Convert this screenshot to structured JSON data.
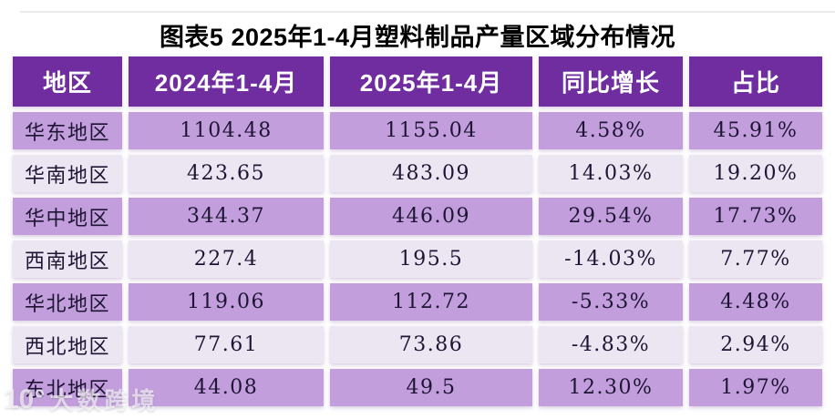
{
  "title": "图表5 2025年1-4月塑料制品产量区域分布情况",
  "watermark": {
    "logo": "10°",
    "text": "大数跨境"
  },
  "colors": {
    "header_bg": "#6f2da0",
    "header_text": "#ffffff",
    "row_dark": "#c29edd",
    "row_light": "#ece6f3",
    "cell_text": "#1d1533",
    "title_text": "#000000",
    "page_bg": "#ffffff"
  },
  "table": {
    "columns": [
      "地区",
      "2024年1-4月",
      "2025年1-4月",
      "同比增长",
      "占比"
    ],
    "rows": [
      [
        "华东地区",
        "1104.48",
        "1155.04",
        "4.58%",
        "45.91%"
      ],
      [
        "华南地区",
        "423.65",
        "483.09",
        "14.03%",
        "19.20%"
      ],
      [
        "华中地区",
        "344.37",
        "446.09",
        "29.54%",
        "17.73%"
      ],
      [
        "西南地区",
        "227.4",
        "195.5",
        "-14.03%",
        "7.77%"
      ],
      [
        "华北地区",
        "119.06",
        "112.72",
        "-5.33%",
        "4.48%"
      ],
      [
        "西北地区",
        "77.61",
        "73.86",
        "-4.83%",
        "2.94%"
      ],
      [
        "东北地区",
        "44.08",
        "49.5",
        "12.30%",
        "1.97%"
      ]
    ]
  },
  "chart_data": {
    "type": "table",
    "title": "图表5 2025年1-4月塑料制品产量区域分布情况",
    "columns": [
      "地区",
      "2024年1-4月",
      "2025年1-4月",
      "同比增长",
      "占比"
    ],
    "rows": [
      {
        "region": "华东地区",
        "y2024": 1104.48,
        "y2025": 1155.04,
        "yoy_growth_pct": 4.58,
        "share_pct": 45.91
      },
      {
        "region": "华南地区",
        "y2024": 423.65,
        "y2025": 483.09,
        "yoy_growth_pct": 14.03,
        "share_pct": 19.2
      },
      {
        "region": "华中地区",
        "y2024": 344.37,
        "y2025": 446.09,
        "yoy_growth_pct": 29.54,
        "share_pct": 17.73
      },
      {
        "region": "西南地区",
        "y2024": 227.4,
        "y2025": 195.5,
        "yoy_growth_pct": -14.03,
        "share_pct": 7.77
      },
      {
        "region": "华北地区",
        "y2024": 119.06,
        "y2025": 112.72,
        "yoy_growth_pct": -5.33,
        "share_pct": 4.48
      },
      {
        "region": "西北地区",
        "y2024": 77.61,
        "y2025": 73.86,
        "yoy_growth_pct": -4.83,
        "share_pct": 2.94
      },
      {
        "region": "东北地区",
        "y2024": 44.08,
        "y2025": 49.5,
        "yoy_growth_pct": 12.3,
        "share_pct": 1.97
      }
    ]
  }
}
